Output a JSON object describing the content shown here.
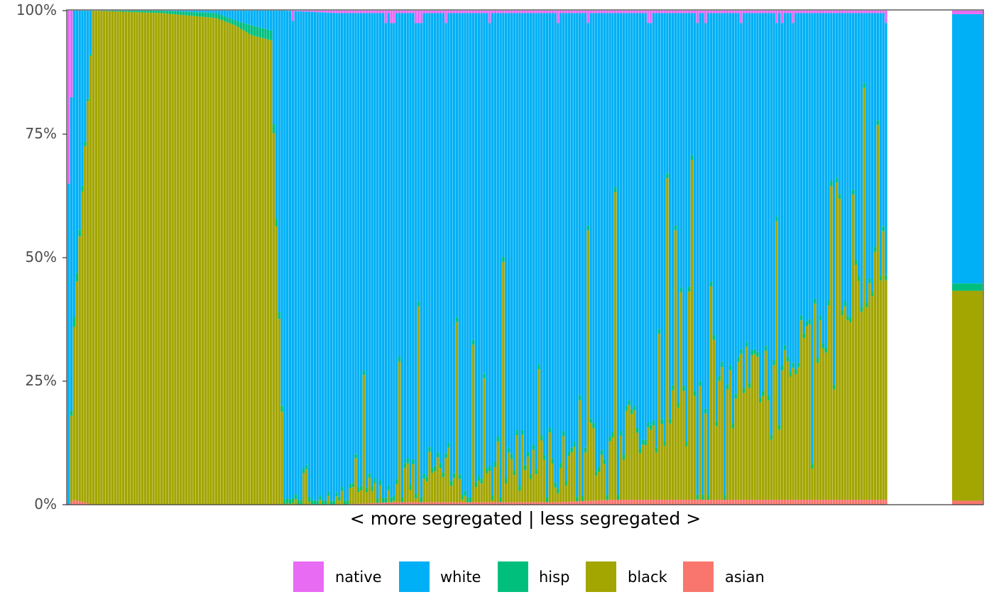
{
  "chart_data": {
    "type": "bar",
    "stacked": true,
    "percent_scale": true,
    "xlabel": "< more segregated | less segregated >",
    "ylabel": "",
    "title": "",
    "ylim": [
      0,
      1
    ],
    "y_ticks": [
      "0%",
      "25%",
      "50%",
      "75%",
      "100%"
    ],
    "grid": false,
    "legend_position": "bottom",
    "stack_order_bottom_to_top": [
      "asian",
      "black",
      "hisp",
      "white",
      "native"
    ],
    "legend": [
      {
        "name": "native",
        "color": "#E76BF3"
      },
      {
        "name": "white",
        "color": "#00B0F6"
      },
      {
        "name": "hisp",
        "color": "#00BF7D"
      },
      {
        "name": "black",
        "color": "#A3A500"
      },
      {
        "name": "asian",
        "color": "#F8766D"
      }
    ],
    "district_series": {
      "n_bars": 300,
      "order": "more segregated to less segregated",
      "description_points": [
        {
          "rank": 1,
          "asian": 0.0,
          "black": 0.0,
          "hisp": 0.0,
          "white": 0.65,
          "native": 0.35
        },
        {
          "rank": 3,
          "asian": 0.01,
          "black": 0.35,
          "hisp": 0.02,
          "white": 0.62,
          "native": 0.0
        },
        {
          "rank": 10,
          "asian": 0.0,
          "black": 1.0,
          "hisp": 0.0,
          "white": 0.0,
          "native": 0.0
        },
        {
          "rank": 35,
          "asian": 0.0,
          "black": 0.995,
          "hisp": 0.005,
          "white": 0.0,
          "native": 0.0
        },
        {
          "rank": 55,
          "asian": 0.0,
          "black": 0.985,
          "hisp": 0.01,
          "white": 0.005,
          "native": 0.0
        },
        {
          "rank": 62,
          "asian": 0.0,
          "black": 0.97,
          "hisp": 0.01,
          "white": 0.02,
          "native": 0.0
        },
        {
          "rank": 68,
          "asian": 0.0,
          "black": 0.95,
          "hisp": 0.02,
          "white": 0.03,
          "native": 0.0
        },
        {
          "rank": 75,
          "asian": 0.0,
          "black": 0.94,
          "hisp": 0.02,
          "white": 0.04,
          "native": 0.0
        },
        {
          "rank": 80,
          "asian": 0.0,
          "black": 0.0,
          "hisp": 0.01,
          "white": 0.99,
          "native": 0.0
        },
        {
          "rank": 100,
          "asian": 0.0,
          "black": 0.002,
          "hisp": 0.008,
          "white": 0.985,
          "native": 0.005
        },
        {
          "rank": 120,
          "asian": 0.005,
          "black": 0.005,
          "hisp": 0.01,
          "white": 0.975,
          "native": 0.005
        },
        {
          "rank": 140,
          "asian": 0.005,
          "black": 0.02,
          "hisp": 0.01,
          "white": 0.96,
          "native": 0.005
        },
        {
          "rank": 160,
          "asian": 0.005,
          "black": 0.04,
          "hisp": 0.01,
          "white": 0.94,
          "native": 0.005
        },
        {
          "rank": 180,
          "asian": 0.005,
          "black": 0.06,
          "hisp": 0.01,
          "white": 0.92,
          "native": 0.005
        },
        {
          "rank": 200,
          "asian": 0.01,
          "black": 0.1,
          "hisp": 0.01,
          "white": 0.875,
          "native": 0.005
        },
        {
          "rank": 220,
          "asian": 0.01,
          "black": 0.14,
          "hisp": 0.01,
          "white": 0.835,
          "native": 0.005
        },
        {
          "rank": 240,
          "asian": 0.01,
          "black": 0.19,
          "hisp": 0.01,
          "white": 0.785,
          "native": 0.005
        },
        {
          "rank": 260,
          "asian": 0.01,
          "black": 0.25,
          "hisp": 0.01,
          "white": 0.725,
          "native": 0.005
        },
        {
          "rank": 280,
          "asian": 0.01,
          "black": 0.33,
          "hisp": 0.01,
          "white": 0.645,
          "native": 0.005
        },
        {
          "rank": 300,
          "asian": 0.01,
          "black": 0.46,
          "hisp": 0.01,
          "white": 0.515,
          "native": 0.005
        }
      ]
    },
    "total_bar": {
      "asian": 0.008,
      "black": 0.425,
      "hisp": 0.015,
      "white": 0.545,
      "native": 0.007
    }
  }
}
